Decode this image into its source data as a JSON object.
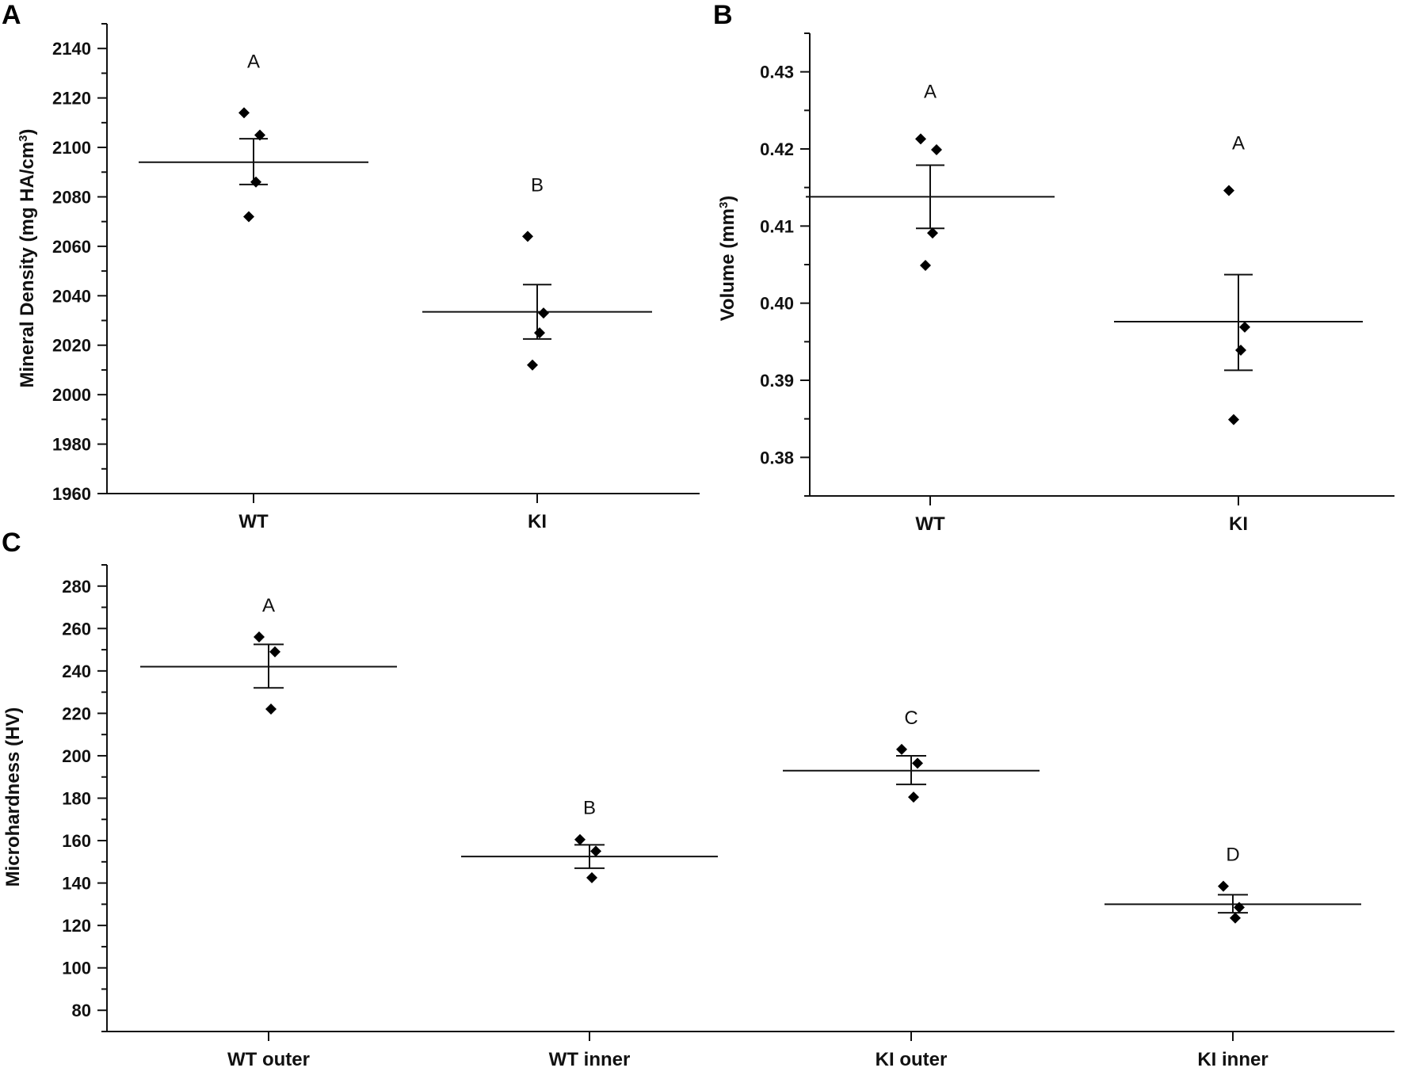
{
  "chart_data": [
    {
      "panel": "A",
      "type": "scatter",
      "categories": [
        "WT",
        "KI"
      ],
      "ylabel": "Mineral Density (mg HA/cm",
      "ylabel_sup": "3",
      "ylabel_end": ")",
      "ylim": [
        1960,
        2150
      ],
      "yticks": [
        "1960",
        "1980",
        "2000",
        "2020",
        "2040",
        "2060",
        "2080",
        "2100",
        "2120",
        "2140"
      ],
      "groups": [
        {
          "category": "WT",
          "points": [
            2114,
            2105,
            2086,
            2072
          ],
          "mean": 2094,
          "err_low": 2085,
          "err_high": 2103.5,
          "letter": "A"
        },
        {
          "category": "KI",
          "points": [
            2064,
            2033,
            2025,
            2012
          ],
          "mean": 2033.5,
          "err_low": 2022.5,
          "err_high": 2044.5,
          "letter": "B"
        }
      ]
    },
    {
      "panel": "B",
      "type": "scatter",
      "categories": [
        "WT",
        "KI"
      ],
      "ylabel": "Volume (mm",
      "ylabel_sup": "3",
      "ylabel_end": ")",
      "ylim": [
        0.375,
        0.435
      ],
      "yticks": [
        "0.38",
        "0.39",
        "0.40",
        "0.41",
        "0.42",
        "0.43"
      ],
      "groups": [
        {
          "category": "WT",
          "points": [
            0.4213,
            0.4199,
            0.4091,
            0.4049
          ],
          "mean": 0.4138,
          "err_low": 0.4097,
          "err_high": 0.4179,
          "letter": "A"
        },
        {
          "category": "KI",
          "points": [
            0.4146,
            0.3969,
            0.3939,
            0.3849
          ],
          "mean": 0.3976,
          "err_low": 0.3913,
          "err_high": 0.4037,
          "letter": "A"
        }
      ]
    },
    {
      "panel": "C",
      "type": "scatter",
      "categories": [
        "WT outer",
        "WT inner",
        "KI outer",
        "KI inner"
      ],
      "ylabel": "Microhardness (HV)",
      "ylim": [
        70,
        290
      ],
      "yticks": [
        "80",
        "100",
        "120",
        "140",
        "160",
        "180",
        "200",
        "220",
        "240",
        "260",
        "280"
      ],
      "groups": [
        {
          "category": "WT outer",
          "points": [
            256,
            249,
            222
          ],
          "mean": 242,
          "err_low": 232,
          "err_high": 252.5,
          "letter": "A"
        },
        {
          "category": "WT inner",
          "points": [
            160.5,
            155,
            142.5
          ],
          "mean": 152.5,
          "err_low": 147,
          "err_high": 158,
          "letter": "B"
        },
        {
          "category": "KI outer",
          "points": [
            203,
            196.5,
            180.5
          ],
          "mean": 193,
          "err_low": 186.5,
          "err_high": 200,
          "letter": "C"
        },
        {
          "category": "KI inner",
          "points": [
            138.5,
            128.5,
            123.5
          ],
          "mean": 130,
          "err_low": 126,
          "err_high": 134.5,
          "letter": "D"
        }
      ]
    }
  ]
}
